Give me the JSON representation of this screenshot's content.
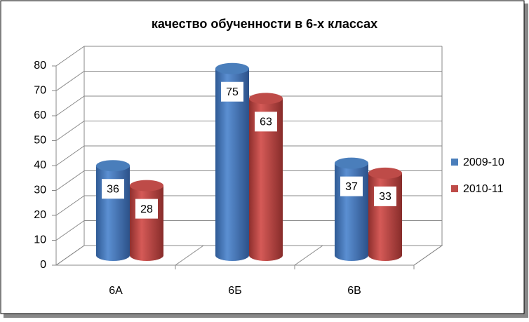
{
  "chart_data": {
    "type": "bar",
    "title": "качество обученности в 6-х классах",
    "categories": [
      "6А",
      "6Б",
      "6В"
    ],
    "series": [
      {
        "name": "2009-10",
        "color": "#4a7ebb",
        "values": [
          36,
          75,
          37
        ]
      },
      {
        "name": "2010-11",
        "color": "#be4b48",
        "values": [
          28,
          63,
          33
        ]
      }
    ],
    "ylim": [
      0,
      80
    ],
    "yticks": [
      0,
      10,
      20,
      30,
      40,
      50,
      60,
      70,
      80
    ],
    "grid": true,
    "legend": "right"
  }
}
